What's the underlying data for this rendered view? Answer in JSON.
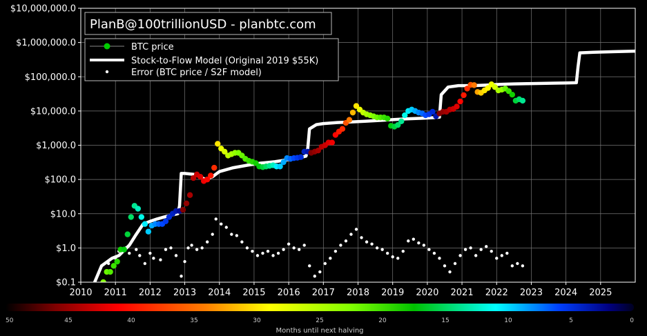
{
  "chart_data": {
    "type": "scatter",
    "title": "PlanB@100trillionUSD  -  planbtc.com",
    "y_scale": "log",
    "ylim": [
      0.1,
      10000000
    ],
    "xlim": [
      2010,
      2026
    ],
    "y_tick_labels": [
      "$10,000,000.0",
      "$1,000,000.0",
      "$100,000.0",
      "$10,000.0",
      "$1,000.0",
      "$100.0",
      "$10.0",
      "$1.0",
      "$0.1"
    ],
    "y_tick_values": [
      10000000,
      1000000,
      100000,
      10000,
      1000,
      100,
      10,
      1,
      0.1
    ],
    "x_tick_labels": [
      "2010",
      "2011",
      "2012",
      "2013",
      "2014",
      "2015",
      "2016",
      "2017",
      "2018",
      "2019",
      "2020",
      "2021",
      "2022",
      "2023",
      "2024",
      "2025"
    ],
    "x_tick_values": [
      2010,
      2011,
      2012,
      2013,
      2014,
      2015,
      2016,
      2017,
      2018,
      2019,
      2020,
      2021,
      2022,
      2023,
      2024,
      2025
    ],
    "grid": true,
    "legend_placement": "top-left",
    "colorbar": {
      "label": "Months until next halving",
      "tick_labels": [
        "50",
        "45",
        "40",
        "35",
        "30",
        "25",
        "20",
        "15",
        "10",
        "5",
        "0"
      ],
      "tick_values": [
        50,
        45,
        40,
        35,
        30,
        25,
        20,
        15,
        10,
        5,
        0
      ]
    },
    "series": [
      {
        "name": "BTC price",
        "marker": "colored-dot",
        "x": [
          2010.55,
          2010.65,
          2010.75,
          2010.85,
          2010.95,
          2011.05,
          2011.15,
          2011.25,
          2011.35,
          2011.45,
          2011.55,
          2011.65,
          2011.75,
          2011.85,
          2011.95,
          2012.05,
          2012.15,
          2012.25,
          2012.35,
          2012.45,
          2012.55,
          2012.65,
          2012.75,
          2012.85,
          2012.95,
          2013.05,
          2013.15,
          2013.25,
          2013.35,
          2013.45,
          2013.55,
          2013.65,
          2013.75,
          2013.85,
          2013.95,
          2014.05,
          2014.15,
          2014.25,
          2014.35,
          2014.45,
          2014.55,
          2014.65,
          2014.75,
          2014.85,
          2014.95,
          2015.05,
          2015.15,
          2015.25,
          2015.35,
          2015.45,
          2015.55,
          2015.65,
          2015.75,
          2015.85,
          2015.95,
          2016.05,
          2016.15,
          2016.25,
          2016.35,
          2016.45,
          2016.55,
          2016.65,
          2016.75,
          2016.85,
          2016.95,
          2017.05,
          2017.15,
          2017.25,
          2017.35,
          2017.45,
          2017.55,
          2017.65,
          2017.75,
          2017.85,
          2017.95,
          2018.05,
          2018.15,
          2018.25,
          2018.35,
          2018.45,
          2018.55,
          2018.65,
          2018.75,
          2018.85,
          2018.95,
          2019.05,
          2019.15,
          2019.25,
          2019.35,
          2019.45,
          2019.55,
          2019.65,
          2019.75,
          2019.85,
          2019.95,
          2020.05,
          2020.15,
          2020.25,
          2020.35,
          2020.45,
          2020.55,
          2020.65,
          2020.75,
          2020.85,
          2020.95,
          2021.05,
          2021.15,
          2021.25,
          2021.35,
          2021.45,
          2021.55,
          2021.65,
          2021.75,
          2021.85,
          2021.95,
          2022.05,
          2022.15,
          2022.25,
          2022.35,
          2022.45,
          2022.55,
          2022.65,
          2022.75
        ],
        "y": [
          0.07,
          0.1,
          0.2,
          0.2,
          0.3,
          0.4,
          0.9,
          0.9,
          2.5,
          8,
          17,
          14,
          8,
          5,
          3,
          4.5,
          5,
          5,
          5,
          6,
          8,
          10,
          12,
          12,
          13,
          20,
          35,
          110,
          140,
          120,
          90,
          100,
          130,
          220,
          1100,
          800,
          650,
          500,
          550,
          600,
          600,
          500,
          400,
          350,
          330,
          300,
          240,
          230,
          240,
          250,
          260,
          240,
          240,
          320,
          420,
          400,
          420,
          430,
          450,
          650,
          650,
          600,
          650,
          700,
          900,
          1000,
          1200,
          1200,
          2000,
          2500,
          3000,
          4500,
          5500,
          9000,
          14000,
          11000,
          9000,
          8000,
          7500,
          7000,
          6500,
          6500,
          6500,
          6000,
          3700,
          3500,
          3900,
          5000,
          7500,
          10000,
          11000,
          10000,
          9000,
          8500,
          7500,
          8000,
          9500,
          7000,
          8500,
          9500,
          9500,
          11000,
          11500,
          13500,
          19000,
          29000,
          45000,
          58000,
          57000,
          36000,
          34000,
          40000,
          47000,
          60000,
          50000,
          40000,
          42000,
          45000,
          38000,
          30000,
          20000,
          22000,
          20000
        ],
        "months_until_halving": [
          24,
          23,
          22,
          21,
          20,
          19,
          18,
          17,
          16,
          15,
          14,
          13,
          12,
          11,
          10,
          9,
          8,
          7,
          6,
          5,
          4,
          3,
          2,
          1,
          48,
          47,
          46,
          45,
          44,
          43,
          42,
          41,
          40,
          39,
          30,
          28,
          27,
          26,
          25,
          24,
          23,
          22,
          21,
          20,
          19,
          18,
          17,
          16,
          15,
          14,
          13,
          11,
          10,
          9,
          8,
          7,
          6,
          5,
          4,
          3,
          2,
          48,
          47,
          46,
          45,
          44,
          43,
          42,
          41,
          40,
          39,
          37,
          35,
          32,
          30,
          28,
          26,
          25,
          24,
          23,
          22,
          21,
          20,
          19,
          17,
          16,
          15,
          14,
          12,
          11,
          10,
          9,
          8,
          7,
          6,
          5,
          4,
          2,
          48,
          47,
          46,
          45,
          44,
          43,
          41,
          40,
          39,
          37,
          35,
          33,
          31,
          30,
          29,
          28,
          27,
          25,
          24,
          22,
          20,
          18,
          16,
          15,
          14
        ]
      },
      {
        "name": "Stock-to-Flow Model (Original 2019 $55K)",
        "marker": "white-line",
        "x": [
          2010.2,
          2010.4,
          2010.6,
          2010.9,
          2011.1,
          2011.4,
          2011.6,
          2011.8,
          2012.0,
          2012.2,
          2012.4,
          2012.6,
          2012.8,
          2012.85,
          2012.9,
          2013.0,
          2013.3,
          2013.6,
          2013.8,
          2014.0,
          2014.4,
          2014.8,
          2015.2,
          2015.6,
          2016.0,
          2016.3,
          2016.5,
          2016.55,
          2016.6,
          2016.8,
          2017.0,
          2017.4,
          2017.8,
          2018.2,
          2018.6,
          2019.0,
          2019.4,
          2019.8,
          2020.2,
          2020.35,
          2020.4,
          2020.6,
          2020.9,
          2021.3,
          2021.7,
          2022.1,
          2022.5,
          2022.9,
          2023.3,
          2023.7,
          2024.0,
          2024.3,
          2024.35,
          2024.4,
          2024.8,
          2025.4,
          2026.0
        ],
        "y": [
          0.04,
          0.1,
          0.3,
          0.5,
          0.6,
          1.2,
          2.5,
          5,
          6,
          7,
          8,
          9,
          10,
          17,
          150,
          150,
          140,
          100,
          120,
          170,
          220,
          260,
          300,
          330,
          380,
          430,
          480,
          800,
          3000,
          4000,
          4300,
          4600,
          4800,
          5000,
          5300,
          5600,
          5900,
          6100,
          6400,
          6600,
          30000,
          50000,
          55000,
          55000,
          57000,
          60000,
          62000,
          63000,
          64000,
          65000,
          66000,
          67000,
          200000,
          500000,
          520000,
          540000,
          560000
        ]
      },
      {
        "name": "Error (BTC price / S2F model)",
        "marker": "white-dot",
        "x": [
          2010.6,
          2010.8,
          2011.0,
          2011.1,
          2011.3,
          2011.4,
          2011.6,
          2011.7,
          2011.85,
          2012.0,
          2012.1,
          2012.3,
          2012.45,
          2012.6,
          2012.75,
          2012.9,
          2013.0,
          2013.1,
          2013.2,
          2013.35,
          2013.5,
          2013.65,
          2013.8,
          2013.9,
          2014.05,
          2014.2,
          2014.35,
          2014.5,
          2014.65,
          2014.8,
          2014.95,
          2015.1,
          2015.25,
          2015.4,
          2015.55,
          2015.7,
          2015.85,
          2016.0,
          2016.15,
          2016.3,
          2016.45,
          2016.6,
          2016.75,
          2016.9,
          2017.05,
          2017.2,
          2017.35,
          2017.5,
          2017.65,
          2017.8,
          2017.95,
          2018.1,
          2018.25,
          2018.4,
          2018.55,
          2018.7,
          2018.85,
          2019.0,
          2019.15,
          2019.3,
          2019.45,
          2019.6,
          2019.75,
          2019.9,
          2020.05,
          2020.2,
          2020.35,
          2020.5,
          2020.65,
          2020.8,
          2020.95,
          2021.1,
          2021.25,
          2021.4,
          2021.55,
          2021.7,
          2021.85,
          2022.0,
          2022.15,
          2022.3,
          2022.45,
          2022.6,
          2022.75
        ],
        "y": [
          0.3,
          0.35,
          0.5,
          0.8,
          1.0,
          0.7,
          0.9,
          0.6,
          0.35,
          0.7,
          0.5,
          0.45,
          0.9,
          1.0,
          0.6,
          0.15,
          0.4,
          1.0,
          1.2,
          0.9,
          1.0,
          1.5,
          2.5,
          7,
          5,
          4,
          2.5,
          2.3,
          1.5,
          1.0,
          0.8,
          0.6,
          0.7,
          0.8,
          0.6,
          0.7,
          0.9,
          1.3,
          1.0,
          0.9,
          1.2,
          0.3,
          0.15,
          0.2,
          0.35,
          0.5,
          0.8,
          1.2,
          1.6,
          2.5,
          3.5,
          2.0,
          1.5,
          1.3,
          1.0,
          0.9,
          0.7,
          0.55,
          0.5,
          0.8,
          1.6,
          1.8,
          1.4,
          1.2,
          0.9,
          0.7,
          0.5,
          0.3,
          0.2,
          0.35,
          0.6,
          0.9,
          1.0,
          0.6,
          0.9,
          1.1,
          0.8,
          0.5,
          0.6,
          0.7,
          0.3,
          0.35,
          0.3
        ]
      }
    ]
  }
}
